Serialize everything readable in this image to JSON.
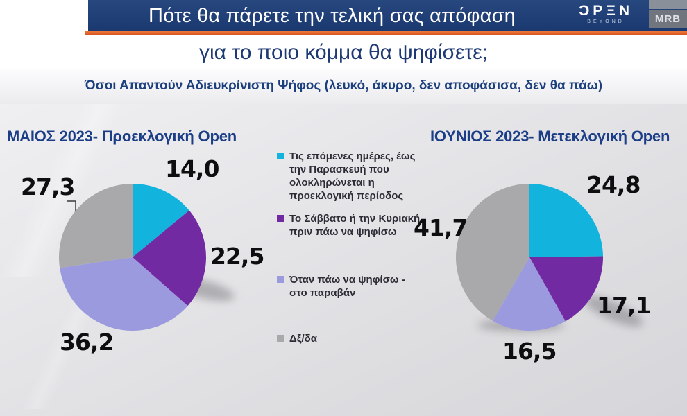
{
  "header": {
    "title": "Πότε θα πάρετε την τελική σας απόφαση",
    "subtitle": "για το ποιο κόμμα θα ψηφίσετε;",
    "open_logo": {
      "text": "ƆPΞN",
      "sub": "BEYOND"
    },
    "mrb_label": "MRB"
  },
  "note": {
    "text": "Όσοι Απαντούν Αδιευκρίνιστη Ψήφος (λευκό, άκυρο, δεν αποφάσισα, δεν θα πάω)"
  },
  "colors": {
    "title_bar": "#1e3b76",
    "accent_orange": "#e2622b",
    "heading_blue": "#1c3e87",
    "slices": [
      "#12b3dd",
      "#722aa2",
      "#9c9ade",
      "#a9a8aa"
    ]
  },
  "legend": {
    "items": [
      {
        "label": "Τις επόμενες ημέρες, έως την Παρασκευή που ολοκληρώνεται η προεκλογική περίοδος",
        "color_index": 0
      },
      {
        "label": "Το Σάββατο ή την Κυριακή πριν πάω να ψηφίσω",
        "color_index": 1
      },
      {
        "label": "Όταν πάω να ψηφίσω - στο παραβάν",
        "color_index": 2
      },
      {
        "label": "Δξ/δα",
        "color_index": 3
      }
    ]
  },
  "chart_data": [
    {
      "type": "pie",
      "title": "ΜΑΙΟΣ 2023- Προεκλογική Open",
      "categories": [
        "Τις επόμενες ημέρες, έως την Παρασκευή που ολοκληρώνεται η προεκλογική περίοδος",
        "Το Σάββατο ή την Κυριακή πριν πάω να ψηφίσω",
        "Όταν πάω να ψηφίσω - στο παραβάν",
        "Δξ/δα"
      ],
      "values": [
        14.0,
        22.5,
        36.2,
        27.3
      ],
      "display_values": [
        "14,0",
        "22,5",
        "36,2",
        "27,3"
      ],
      "colors": [
        "#12b3dd",
        "#722aa2",
        "#9c9ade",
        "#a9a8aa"
      ],
      "start_angle_deg": 0,
      "direction": "clockwise",
      "legend_position": "center-between-charts"
    },
    {
      "type": "pie",
      "title": "ΙΟΥΝΙΟΣ 2023- Μετεκλογική Open",
      "categories": [
        "Τις επόμενες ημέρες, έως την Παρασκευή που ολοκληρώνεται η προεκλογική περίοδος",
        "Το Σάββατο ή την Κυριακή πριν πάω να ψηφίσω",
        "Όταν πάω να ψηφίσω - στο παραβάν",
        "Δξ/δα"
      ],
      "values": [
        24.8,
        17.1,
        16.5,
        41.7
      ],
      "display_values": [
        "24,8",
        "17,1",
        "16,5",
        "41,7"
      ],
      "colors": [
        "#12b3dd",
        "#722aa2",
        "#9c9ade",
        "#a9a8aa"
      ],
      "start_angle_deg": 0,
      "direction": "clockwise",
      "legend_position": "center-between-charts"
    }
  ]
}
